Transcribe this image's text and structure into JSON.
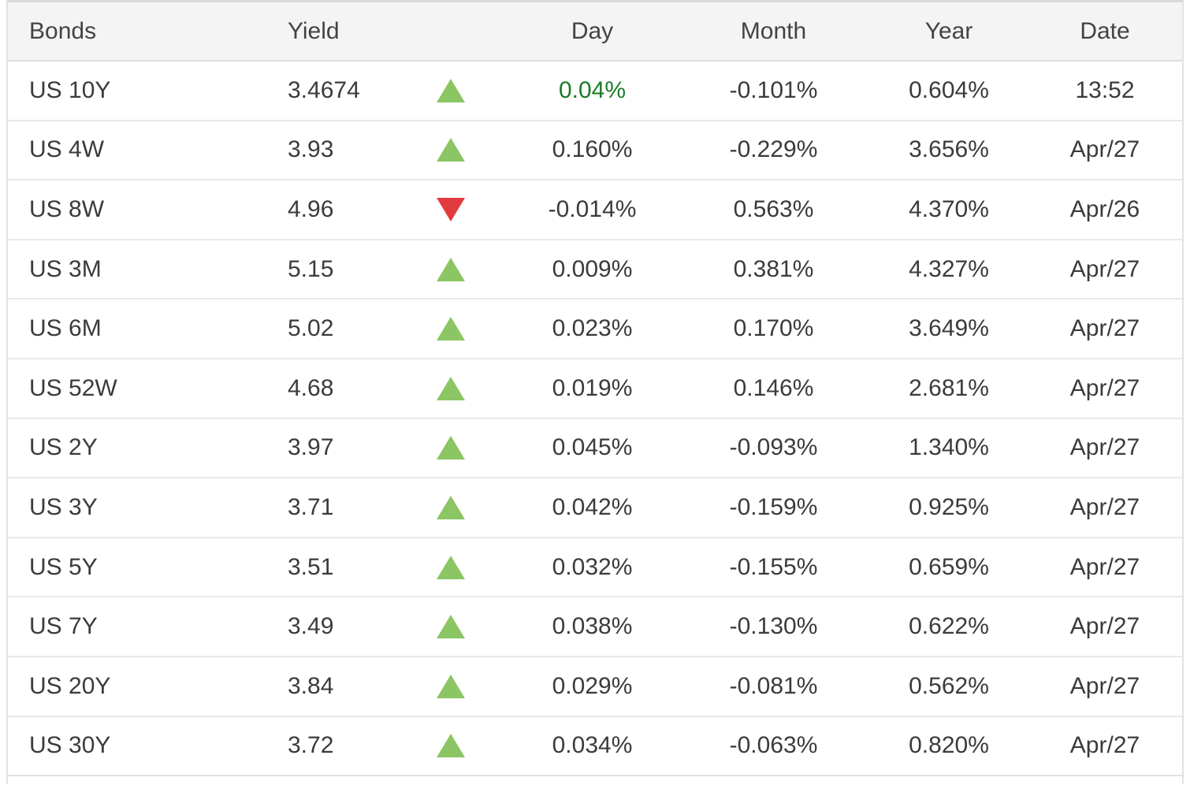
{
  "table": {
    "columns": [
      {
        "key": "bond",
        "label": "Bonds"
      },
      {
        "key": "yield",
        "label": "Yield"
      },
      {
        "key": "arrow",
        "label": ""
      },
      {
        "key": "day",
        "label": "Day"
      },
      {
        "key": "month",
        "label": "Month"
      },
      {
        "key": "year",
        "label": "Year"
      },
      {
        "key": "date",
        "label": "Date"
      }
    ],
    "rows": [
      {
        "bond": "US 10Y",
        "yield": "3.4674",
        "direction": "up",
        "day": "0.04%",
        "day_color": "green",
        "month": "-0.101%",
        "year": "0.604%",
        "date": "13:52"
      },
      {
        "bond": "US 4W",
        "yield": "3.93",
        "direction": "up",
        "day": "0.160%",
        "day_color": "default",
        "month": "-0.229%",
        "year": "3.656%",
        "date": "Apr/27"
      },
      {
        "bond": "US 8W",
        "yield": "4.96",
        "direction": "down",
        "day": "-0.014%",
        "day_color": "default",
        "month": "0.563%",
        "year": "4.370%",
        "date": "Apr/26"
      },
      {
        "bond": "US 3M",
        "yield": "5.15",
        "direction": "up",
        "day": "0.009%",
        "day_color": "default",
        "month": "0.381%",
        "year": "4.327%",
        "date": "Apr/27"
      },
      {
        "bond": "US 6M",
        "yield": "5.02",
        "direction": "up",
        "day": "0.023%",
        "day_color": "default",
        "month": "0.170%",
        "year": "3.649%",
        "date": "Apr/27"
      },
      {
        "bond": "US 52W",
        "yield": "4.68",
        "direction": "up",
        "day": "0.019%",
        "day_color": "default",
        "month": "0.146%",
        "year": "2.681%",
        "date": "Apr/27"
      },
      {
        "bond": "US 2Y",
        "yield": "3.97",
        "direction": "up",
        "day": "0.045%",
        "day_color": "default",
        "month": "-0.093%",
        "year": "1.340%",
        "date": "Apr/27"
      },
      {
        "bond": "US 3Y",
        "yield": "3.71",
        "direction": "up",
        "day": "0.042%",
        "day_color": "default",
        "month": "-0.159%",
        "year": "0.925%",
        "date": "Apr/27"
      },
      {
        "bond": "US 5Y",
        "yield": "3.51",
        "direction": "up",
        "day": "0.032%",
        "day_color": "default",
        "month": "-0.155%",
        "year": "0.659%",
        "date": "Apr/27"
      },
      {
        "bond": "US 7Y",
        "yield": "3.49",
        "direction": "up",
        "day": "0.038%",
        "day_color": "default",
        "month": "-0.130%",
        "year": "0.622%",
        "date": "Apr/27"
      },
      {
        "bond": "US 20Y",
        "yield": "3.84",
        "direction": "up",
        "day": "0.029%",
        "day_color": "default",
        "month": "-0.081%",
        "year": "0.562%",
        "date": "Apr/27"
      },
      {
        "bond": "US 30Y",
        "yield": "3.72",
        "direction": "up",
        "day": "0.034%",
        "day_color": "default",
        "month": "-0.063%",
        "year": "0.820%",
        "date": "Apr/27"
      }
    ]
  },
  "colors": {
    "up_arrow": "#8cc563",
    "down_arrow": "#e23b3f",
    "day_green_text": "#1b7b28",
    "header_background": "#f4f4f4",
    "text": "#3b3b3b",
    "row_divider": "#e9e9e9"
  }
}
